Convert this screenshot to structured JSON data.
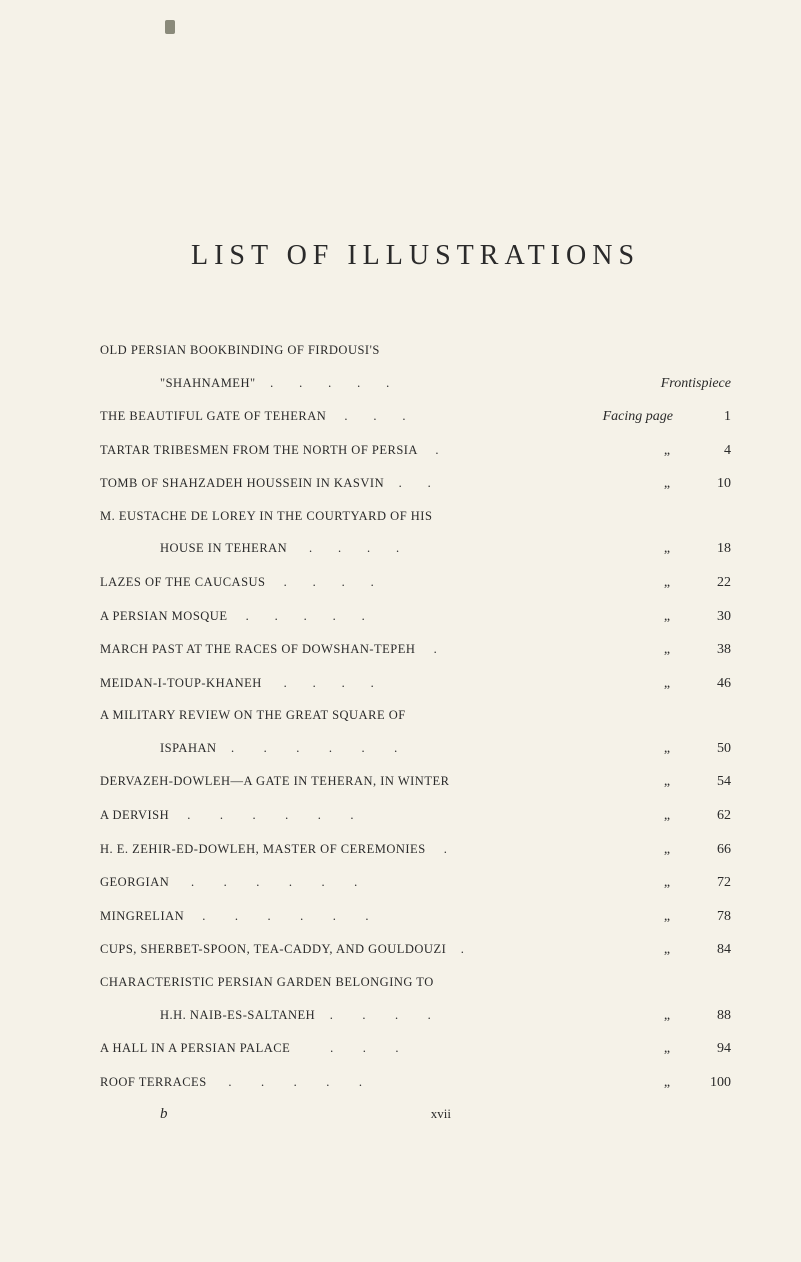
{
  "title": "LIST OF ILLUSTRATIONS",
  "frontispiece_label": "Frontispiece",
  "facing_page_label": "Facing page",
  "ditto_mark": "„",
  "entries": [
    {
      "line1": "OLD PERSIAN BOOKBINDING OF FIRDOUSI'S",
      "line2": "\"SHAHNAMEH\"",
      "type": "frontispiece"
    },
    {
      "text": "THE BEAUTIFUL GATE OF TEHERAN",
      "type": "first_page",
      "page": "1"
    },
    {
      "text": "TARTAR TRIBESMEN FROM THE NORTH OF PERSIA",
      "page": "4"
    },
    {
      "text": "TOMB OF SHAHZADEH HOUSSEIN IN KASVIN",
      "page": "10"
    },
    {
      "line1": "M. EUSTACHE DE LOREY IN THE COURTYARD OF HIS",
      "line2": "HOUSE IN TEHERAN",
      "page": "18"
    },
    {
      "text": "LAZES OF THE CAUCASUS",
      "page": "22"
    },
    {
      "text": "A PERSIAN MOSQUE",
      "page": "30"
    },
    {
      "text": "MARCH PAST AT THE RACES OF DOWSHAN-TEPEH",
      "page": "38"
    },
    {
      "text": "MEIDAN-I-TOUP-KHANEH",
      "page": "46"
    },
    {
      "line1": "A MILITARY REVIEW ON THE GREAT SQUARE OF",
      "line2": "ISPAHAN",
      "page": "50"
    },
    {
      "text": "DERVAZEH-DOWLEH—A GATE IN TEHERAN, IN WINTER",
      "page": "54"
    },
    {
      "text": "A DERVISH",
      "page": "62"
    },
    {
      "text": "H. E. ZEHIR-ED-DOWLEH, MASTER OF CEREMONIES",
      "page": "66"
    },
    {
      "text": "GEORGIAN",
      "page": "72"
    },
    {
      "text": "MINGRELIAN",
      "page": "78"
    },
    {
      "text": "CUPS, SHERBET-SPOON, TEA-CADDY, AND GOULDOUZI",
      "page": "84"
    },
    {
      "line1": "CHARACTERISTIC PERSIAN GARDEN BELONGING TO",
      "line2": "H.H. NAIB-ES-SALTANEH",
      "page": "88"
    },
    {
      "text": "A HALL IN A PERSIAN PALACE",
      "page": "94"
    },
    {
      "text": "ROOF TERRACES",
      "page": "100"
    }
  ],
  "footer": {
    "signature": "b",
    "roman_page": "xvii"
  }
}
